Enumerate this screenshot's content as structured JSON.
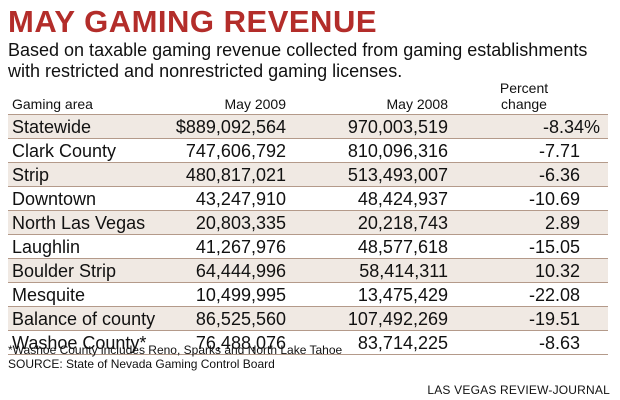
{
  "chart_data": {
    "type": "table",
    "title": "MAY GAMING REVENUE",
    "subtitle": "Based on taxable gaming revenue collected from gaming establishments with restricted and nonrestricted gaming licenses.",
    "columns": [
      "Gaming area",
      "May 2009",
      "May 2008",
      "Percent change"
    ],
    "rows": [
      [
        "Statewide",
        "$889,092,564",
        "970,003,519",
        "-8.34%"
      ],
      [
        "Clark County",
        "747,606,792",
        "810,096,316",
        "-7.71"
      ],
      [
        "Strip",
        "480,817,021",
        "513,493,007",
        "-6.36"
      ],
      [
        "Downtown",
        "43,247,910",
        "48,424,937",
        "-10.69"
      ],
      [
        "North Las Vegas",
        "20,803,335",
        "20,218,743",
        "2.89"
      ],
      [
        "Laughlin",
        "41,267,976",
        "48,577,618",
        "-15.05"
      ],
      [
        "Boulder Strip",
        "64,444,996",
        "58,414,311",
        "10.32"
      ],
      [
        "Mesquite",
        "10,499,995",
        "13,475,429",
        "-22.08"
      ],
      [
        "Balance of county",
        "86,525,560",
        "107,492,269",
        "-19.51"
      ],
      [
        "Washoe County*",
        "76,488,076",
        "83,714,225",
        "-8.63"
      ]
    ]
  },
  "footnote": "*Washoe County includes Reno, Sparks and North Lake Tahoe",
  "source": "SOURCE: State of Nevada Gaming Control Board",
  "credit": "LAS VEGAS REVIEW-JOURNAL",
  "colors": {
    "title": "#b32d2a",
    "shaded_row": "#f0e9e3",
    "rule": "#b49a8a"
  }
}
